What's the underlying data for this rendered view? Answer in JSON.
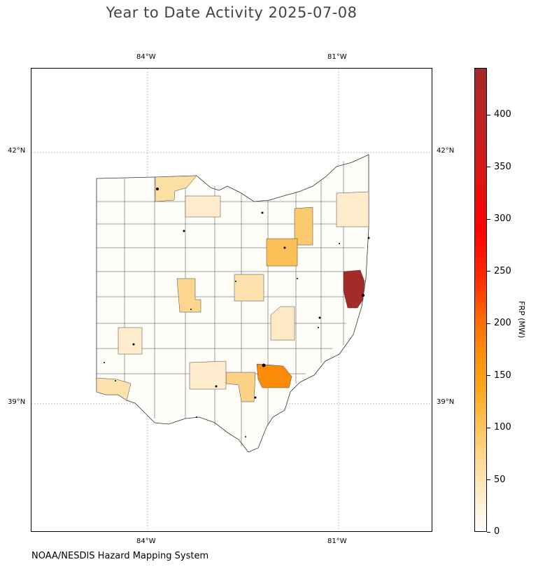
{
  "title": "Year to Date Activity 2025-07-08",
  "credit": "NOAA/NESDIS Hazard Mapping System",
  "map": {
    "region": "Ohio counties",
    "gridlines": true,
    "lon_ticks_top": [
      "84°W",
      "81°W"
    ],
    "lon_ticks_bottom": [
      "84°W",
      "81°W"
    ],
    "lat_ticks_left": [
      "42°N",
      "39°N"
    ],
    "lat_ticks_right": [
      "42°N",
      "39°N"
    ]
  },
  "colorbar": {
    "label": "FRP (MW)",
    "ticks": [
      "0",
      "50",
      "100",
      "150",
      "200",
      "250",
      "300",
      "350",
      "400"
    ],
    "range": [
      0,
      445
    ],
    "colors": {
      "low": "#ffffff",
      "mid": "#fba61c",
      "high": "#ff0000",
      "max": "#a52a2a"
    }
  },
  "chart_data": {
    "type": "heatmap",
    "title": "Year to Date Activity 2025-07-08",
    "colorbar_label": "FRP (MW)",
    "colorbar_range": [
      0,
      445
    ],
    "highlights": [
      {
        "area": "eastern border county",
        "frp": 440,
        "color": "#a52a2a"
      },
      {
        "area": "south-central county",
        "frp": 165,
        "color": "#fb8c0a"
      },
      {
        "area": "central-east county",
        "frp": 100,
        "color": "#fcbf55"
      },
      {
        "area": "northeast county",
        "frp": 85,
        "color": "#fbc970"
      },
      {
        "area": "southern county",
        "frp": 75,
        "color": "#fcd288"
      },
      {
        "area": "west-central county",
        "frp": 70,
        "color": "#fcd68f"
      },
      {
        "area": "northwest county",
        "frp": 60,
        "color": "#fcdfa3"
      }
    ]
  }
}
